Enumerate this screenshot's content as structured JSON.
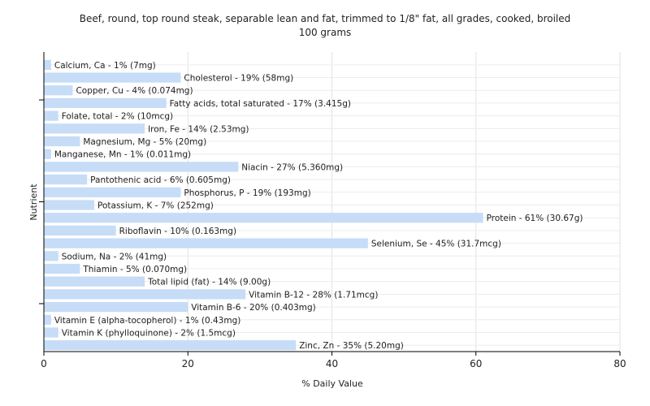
{
  "chart_data": {
    "type": "bar",
    "orientation": "horizontal",
    "title": "Beef, round, top round steak, separable lean and fat, trimmed to 1/8\" fat, all grades, cooked, broiled",
    "subtitle": "100 grams",
    "xlabel": "% Daily Value",
    "ylabel": "Nutrient",
    "xlim": [
      0,
      80
    ],
    "xticks": [
      0,
      20,
      40,
      60,
      80
    ],
    "grid": true,
    "bar_color": "#c6dcf7",
    "categories": [
      "Calcium, Ca",
      "Cholesterol",
      "Copper, Cu",
      "Fatty acids, total saturated",
      "Folate, total",
      "Iron, Fe",
      "Magnesium, Mg",
      "Manganese, Mn",
      "Niacin",
      "Pantothenic acid",
      "Phosphorus, P",
      "Potassium, K",
      "Protein",
      "Riboflavin",
      "Selenium, Se",
      "Sodium, Na",
      "Thiamin",
      "Total lipid (fat)",
      "Vitamin B-12",
      "Vitamin B-6",
      "Vitamin E (alpha-tocopherol)",
      "Vitamin K (phylloquinone)",
      "Zinc, Zn"
    ],
    "values": [
      1,
      19,
      4,
      17,
      2,
      14,
      5,
      1,
      27,
      6,
      19,
      7,
      61,
      10,
      45,
      2,
      5,
      14,
      28,
      20,
      1,
      2,
      35
    ],
    "labels": [
      "Calcium, Ca - 1% (7mg)",
      "Cholesterol - 19% (58mg)",
      "Copper, Cu - 4% (0.074mg)",
      "Fatty acids, total saturated - 17% (3.415g)",
      "Folate, total - 2% (10mcg)",
      "Iron, Fe - 14% (2.53mg)",
      "Magnesium, Mg - 5% (20mg)",
      "Manganese, Mn - 1% (0.011mg)",
      "Niacin - 27% (5.360mg)",
      "Pantothenic acid - 6% (0.605mg)",
      "Phosphorus, P - 19% (193mg)",
      "Potassium, K - 7% (252mg)",
      "Protein - 61% (30.67g)",
      "Riboflavin - 10% (0.163mg)",
      "Selenium, Se - 45% (31.7mcg)",
      "Sodium, Na - 2% (41mg)",
      "Thiamin - 5% (0.070mg)",
      "Total lipid (fat) - 14% (9.00g)",
      "Vitamin B-12 - 28% (1.71mcg)",
      "Vitamin B-6 - 20% (0.403mg)",
      "Vitamin E (alpha-tocopherol) - 1% (0.43mg)",
      "Vitamin K (phylloquinone) - 2% (1.5mcg)",
      "Zinc, Zn - 35% (5.20mg)"
    ]
  }
}
